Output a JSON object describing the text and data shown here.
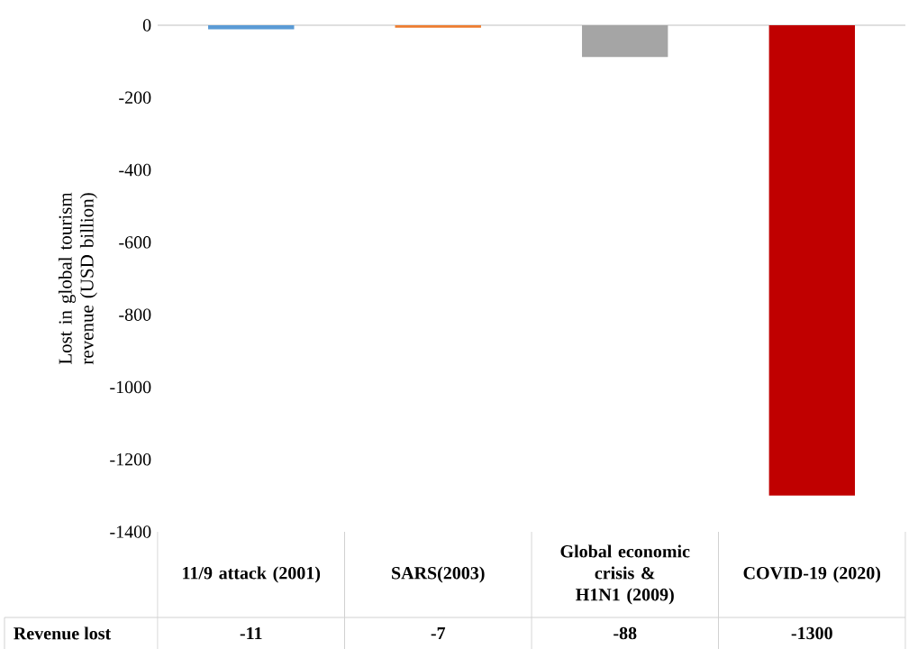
{
  "chart_data": {
    "type": "bar",
    "ylabel": "Lost in global tourism revenue (USD billion)",
    "categories": [
      "11/9 attack (2001)",
      "SARS(2003)",
      "Global economic crisis & H1N1 (2009)",
      "COVID-19 (2020)"
    ],
    "series": [
      {
        "name": "Revenue lost",
        "values": [
          -11,
          -7,
          -88,
          -1300
        ],
        "colors": [
          "#5b9bd5",
          "#ed7d31",
          "#a5a5a5",
          "#c00000"
        ]
      }
    ],
    "ylim": [
      -1400,
      0
    ],
    "yticks": [
      -1400,
      -1200,
      -1000,
      -800,
      -600,
      -400,
      -200,
      0
    ],
    "data_labels": true
  }
}
